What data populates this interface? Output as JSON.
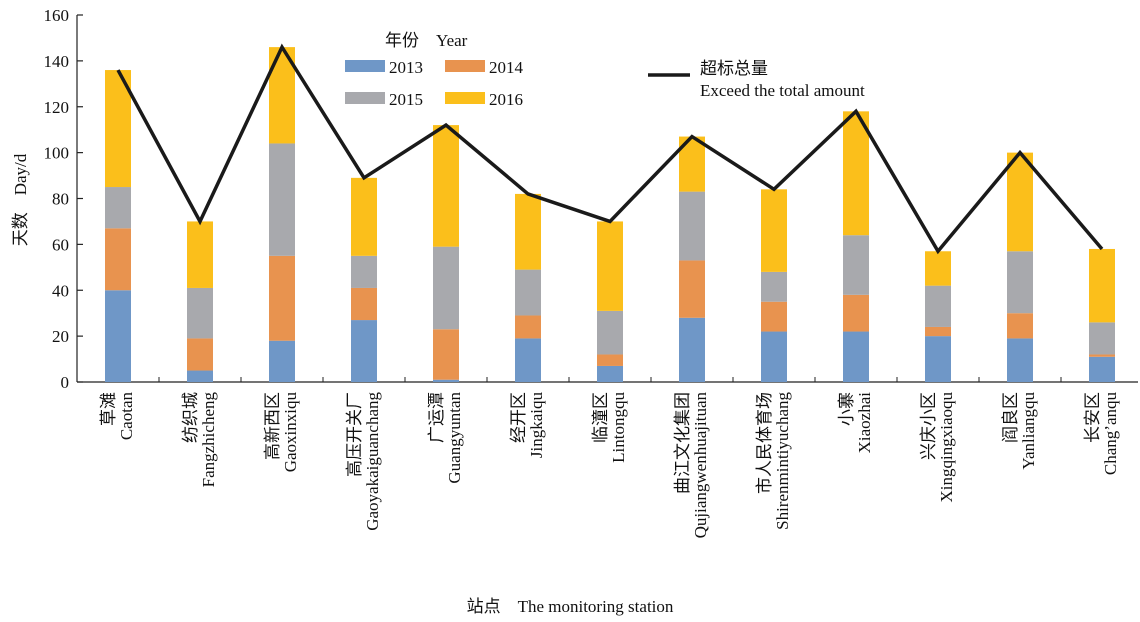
{
  "chart_data": {
    "type": "bar",
    "stacked": true,
    "y_label": "天数　Day/d",
    "x_label": "站点　The monitoring station",
    "legend_title": "年份　Year",
    "categories": [
      "草滩",
      "纺织城",
      "高新西区",
      "高压开关厂",
      "广运潭",
      "经开区",
      "临潼区",
      "曲江文化集团",
      "市人民体育场",
      "小寨",
      "兴庆小区",
      "阎良区",
      "长安区"
    ],
    "categories_en": [
      "Caotan",
      "Fangzhicheng",
      "Gaoxinxiqu",
      "Gaoyakaiguanchang",
      "Guangyuntan",
      "Jingkaiqu",
      "Lintongqu",
      "Qujiangwenhuajituan",
      "Shirenmintiyuchang",
      "Xiaozhai",
      "Xingqingxiaoqu",
      "Yanliangqu",
      "Chang’anqu"
    ],
    "series": [
      {
        "name": "2013",
        "color": "#6f97c7",
        "values": [
          40,
          5,
          18,
          27,
          1,
          19,
          7,
          28,
          22,
          22,
          20,
          19,
          11
        ]
      },
      {
        "name": "2014",
        "color": "#e8934f",
        "values": [
          27,
          14,
          37,
          14,
          22,
          10,
          5,
          25,
          13,
          16,
          4,
          11,
          1
        ]
      },
      {
        "name": "2015",
        "color": "#a8a9ad",
        "values": [
          18,
          22,
          49,
          14,
          36,
          20,
          19,
          30,
          13,
          26,
          18,
          27,
          14
        ]
      },
      {
        "name": "2016",
        "color": "#fbbf1b",
        "values": [
          51,
          29,
          42,
          34,
          53,
          33,
          39,
          24,
          36,
          54,
          15,
          43,
          32
        ]
      }
    ],
    "line": {
      "type": "line",
      "name": "超标总量",
      "name_en": "Exceed the total amount",
      "color": "#1a1a1a",
      "values": [
        136,
        70,
        146,
        89,
        112,
        82,
        70,
        107,
        84,
        118,
        57,
        100,
        58
      ]
    },
    "ylim": [
      0,
      160
    ],
    "yticks": [
      0,
      20,
      40,
      60,
      80,
      100,
      120,
      140,
      160
    ],
    "grid": false
  }
}
